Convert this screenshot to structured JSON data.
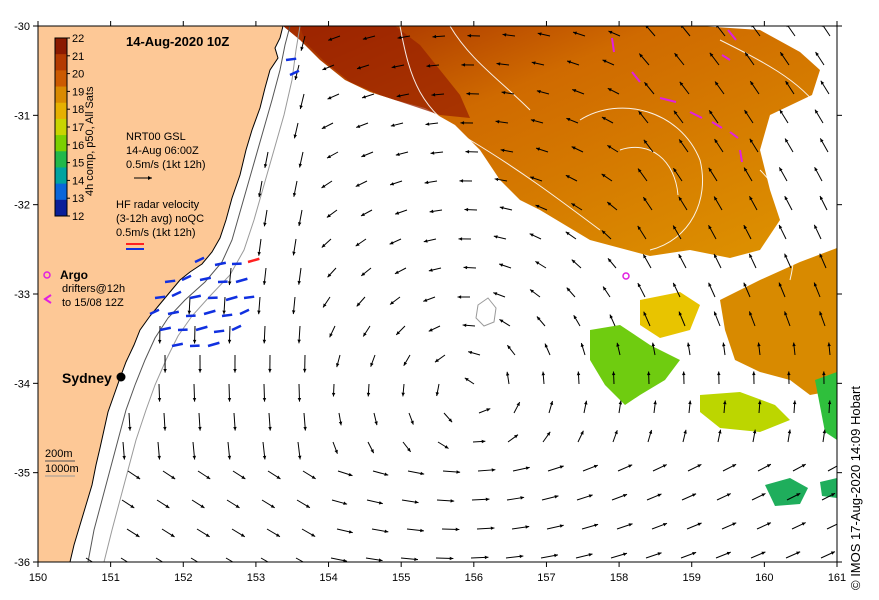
{
  "title": "14-Aug-2020 10Z",
  "colorbar": {
    "label": "4h comp, p50, All Sats",
    "ticks": [
      "22",
      "21",
      "20",
      "19",
      "18",
      "17",
      "16",
      "15",
      "14",
      "13",
      "12"
    ],
    "colors": [
      "#8b1a00",
      "#b33a00",
      "#cc5a00",
      "#d98a00",
      "#e6b000",
      "#c9d400",
      "#7ccf00",
      "#22b84a",
      "#00a3a0",
      "#0a66d9",
      "#0a1f99"
    ]
  },
  "legend": {
    "nrt_title": "NRT00 GSL",
    "nrt_time": "14-Aug 06:00Z",
    "nrt_scale": "0.5m/s (1kt 12h)",
    "hf_title": "HF radar velocity",
    "hf_avg": "(3-12h avg) noQC",
    "hf_scale": "0.5m/s (1kt 12h)",
    "argo_label": "Argo",
    "drifters_line1": "drifters@12h",
    "drifters_line2": "to 15/08 12Z",
    "argo_color": "#e020e0",
    "hf_colors": [
      "#ff2020",
      "#1030e0"
    ]
  },
  "place_labels": {
    "sydney": "Sydney"
  },
  "isobaths": {
    "label_200": "200m",
    "label_1000": "1000m"
  },
  "axes": {
    "x_ticks": [
      "150",
      "151",
      "152",
      "153",
      "154",
      "155",
      "156",
      "157",
      "158",
      "159",
      "160",
      "161"
    ],
    "y_ticks": [
      "-30",
      "-31",
      "-32",
      "-33",
      "-34",
      "-35",
      "-36"
    ],
    "lon_range": [
      150,
      161
    ],
    "lat_range": [
      -36,
      -30
    ]
  },
  "colors": {
    "land": "#fdc896",
    "ocean": "#ffffff",
    "arrow": "#000000",
    "hf_arrow": "#1030e0"
  },
  "credit": "© IMOS 17-Aug-2020 14:09 Hobart"
}
